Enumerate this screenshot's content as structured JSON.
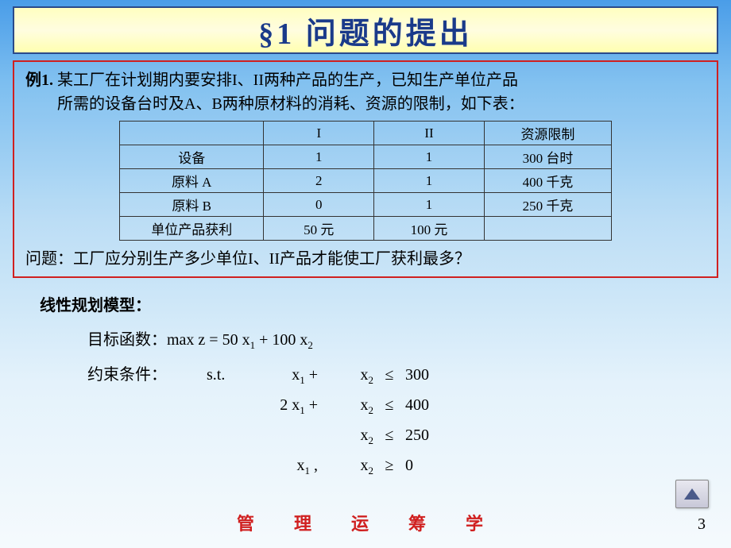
{
  "title": "§1   问题的提出",
  "example": {
    "label": "例1.",
    "line1": "   某工厂在计划期内要安排I、II两种产品的生产，已知生产单位产品",
    "line2": "所需的设备台时及A、B两种原材料的消耗、资源的限制，如下表：",
    "question": "问题：工厂应分别生产多少单位I、II产品才能使工厂获利最多？",
    "table": {
      "columns": [
        "",
        "I",
        "II",
        "资源限制"
      ],
      "rows": [
        [
          "设备",
          "1",
          "1",
          "300 台时"
        ],
        [
          "原料 A",
          "2",
          "1",
          "400 千克"
        ],
        [
          "原料 B",
          "0",
          "1",
          "250 千克"
        ],
        [
          "单位产品获利",
          "50 元",
          "100 元",
          ""
        ]
      ],
      "border_color": "#333333",
      "font_size": 17
    }
  },
  "model": {
    "title": "线性规划模型：",
    "objective_label": "目标函数：",
    "objective_expr": "max    z = 50 x",
    "objective_expr_mid": " + 100 x",
    "constraint_label": "约束条件：",
    "st": "s.t.",
    "constraints": [
      {
        "a": "x",
        "a_sub": "1",
        "plus": " +",
        "b": "x",
        "b_sub": "2",
        "op": "≤",
        "rhs": "300"
      },
      {
        "a": "2 x",
        "a_sub": "1",
        "plus": " +",
        "b": "x",
        "b_sub": "2",
        "op": "≤",
        "rhs": "400"
      },
      {
        "a": "",
        "a_sub": "",
        "plus": "",
        "b": "x",
        "b_sub": "2",
        "op": "≤",
        "rhs": "250"
      },
      {
        "a": "x",
        "a_sub": "1",
        "plus": " ,",
        "b": "x",
        "b_sub": "2",
        "op": "≥",
        "rhs": "0"
      }
    ]
  },
  "footer": "管　理　运　筹　学",
  "page_number": "3",
  "styling": {
    "slide_bg_top": "#4a9de8",
    "slide_bg_bottom": "#f5fafd",
    "title_bg": "#fffec0",
    "title_border": "#2a4a8a",
    "title_color": "#1a3a8a",
    "example_border": "#d02020",
    "footer_color": "#d02020",
    "nav_arrow_color": "#4a5a8a",
    "body_font_size": 20,
    "title_font_size": 38
  }
}
